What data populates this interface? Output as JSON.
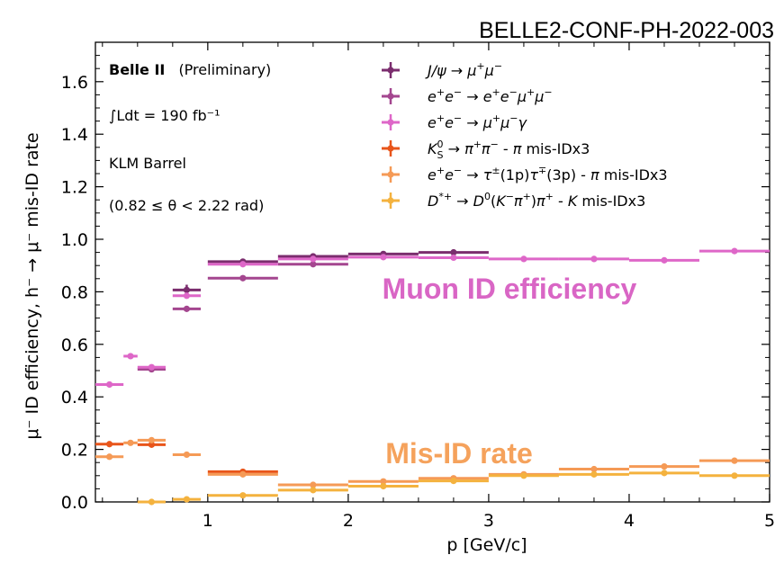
{
  "header": {
    "conf_id": "BELLE2-CONF-PH-2022-003"
  },
  "chart_data": {
    "type": "scatter",
    "xlabel": "p [GeV/c]",
    "ylabel": "μ⁻ ID efficiency, h⁻ → μ⁻ mis-ID rate",
    "xlim": [
      0.2,
      5.0
    ],
    "ylim": [
      0.0,
      1.75
    ],
    "x_ticks": [
      "1",
      "2",
      "3",
      "4",
      "5"
    ],
    "y_ticks": [
      "0.0",
      "0.2",
      "0.4",
      "0.6",
      "0.8",
      "1.0",
      "1.2",
      "1.4",
      "1.6"
    ],
    "info_text": {
      "experiment": "Belle II",
      "status": "(Preliminary)",
      "luminosity": "∫Ldt = 190 fb⁻¹",
      "detector": "KLM Barrel",
      "theta_range": "(0.82  ≤ θ <  2.22 rad)"
    },
    "annotations": {
      "efficiency_label": "Muon ID efficiency",
      "misid_label": "Mis-ID rate"
    },
    "colors": {
      "jpsi": "#7b2d6e",
      "eemumu": "#a4468f",
      "mumugamma": "#de67c8",
      "kshort": "#e8551a",
      "tau": "#f59a56",
      "dstar": "#f4b23e",
      "efficiency_text": "#d966c5",
      "misid_text": "#f5a25c"
    },
    "series": [
      {
        "name": "J/ψ → μ⁺μ⁻",
        "color_key": "jpsi",
        "points": [
          {
            "x": 0.85,
            "xlo": 0.75,
            "xhi": 0.95,
            "y": 0.807,
            "err": 0.02
          },
          {
            "x": 1.25,
            "xlo": 1.0,
            "xhi": 1.5,
            "y": 0.915,
            "err": 0.01
          },
          {
            "x": 1.75,
            "xlo": 1.5,
            "xhi": 2.0,
            "y": 0.935,
            "err": 0.008
          },
          {
            "x": 2.25,
            "xlo": 2.0,
            "xhi": 2.5,
            "y": 0.944,
            "err": 0.008
          },
          {
            "x": 2.75,
            "xlo": 2.5,
            "xhi": 3.0,
            "y": 0.95,
            "err": 0.012
          }
        ]
      },
      {
        "name": "e⁺e⁻ → e⁺e⁻μ⁺μ⁻",
        "color_key": "eemumu",
        "points": [
          {
            "x": 0.6,
            "xlo": 0.5,
            "xhi": 0.7,
            "y": 0.505,
            "err": 0.008
          },
          {
            "x": 0.85,
            "xlo": 0.75,
            "xhi": 0.95,
            "y": 0.735,
            "err": 0.008
          },
          {
            "x": 1.25,
            "xlo": 1.0,
            "xhi": 1.5,
            "y": 0.852,
            "err": 0.006
          },
          {
            "x": 1.75,
            "xlo": 1.5,
            "xhi": 2.0,
            "y": 0.905,
            "err": 0.006
          }
        ]
      },
      {
        "name": "e⁺e⁻ → μ⁺μ⁻γ",
        "color_key": "mumugamma",
        "points": [
          {
            "x": 0.3,
            "xlo": 0.2,
            "xhi": 0.4,
            "y": 0.447,
            "err": 0.006
          },
          {
            "x": 0.45,
            "xlo": 0.4,
            "xhi": 0.5,
            "y": 0.555,
            "err": 0.008
          },
          {
            "x": 0.6,
            "xlo": 0.5,
            "xhi": 0.7,
            "y": 0.513,
            "err": 0.008
          },
          {
            "x": 0.85,
            "xlo": 0.75,
            "xhi": 0.95,
            "y": 0.785,
            "err": 0.01
          },
          {
            "x": 1.25,
            "xlo": 1.0,
            "xhi": 1.5,
            "y": 0.905,
            "err": 0.005
          },
          {
            "x": 1.75,
            "xlo": 1.5,
            "xhi": 2.0,
            "y": 0.925,
            "err": 0.004
          },
          {
            "x": 2.25,
            "xlo": 2.0,
            "xhi": 2.5,
            "y": 0.932,
            "err": 0.004
          },
          {
            "x": 2.75,
            "xlo": 2.5,
            "xhi": 3.0,
            "y": 0.93,
            "err": 0.004
          },
          {
            "x": 3.25,
            "xlo": 3.0,
            "xhi": 3.5,
            "y": 0.925,
            "err": 0.004
          },
          {
            "x": 3.75,
            "xlo": 3.5,
            "xhi": 4.0,
            "y": 0.925,
            "err": 0.004
          },
          {
            "x": 4.25,
            "xlo": 4.0,
            "xhi": 4.5,
            "y": 0.92,
            "err": 0.004
          },
          {
            "x": 4.75,
            "xlo": 4.5,
            "xhi": 5.0,
            "y": 0.955,
            "err": 0.004
          }
        ]
      },
      {
        "name": "K⁰_S → π⁺π⁻ - π mis-IDx3",
        "color_key": "kshort",
        "points": [
          {
            "x": 0.3,
            "xlo": 0.2,
            "xhi": 0.4,
            "y": 0.22,
            "err": 0.006
          },
          {
            "x": 0.6,
            "xlo": 0.5,
            "xhi": 0.7,
            "y": 0.218,
            "err": 0.006
          },
          {
            "x": 1.25,
            "xlo": 1.0,
            "xhi": 1.5,
            "y": 0.115,
            "err": 0.006
          }
        ]
      },
      {
        "name": "e⁺e⁻ → τ±(1p)τ∓(3p) - π mis-IDx3",
        "color_key": "tau",
        "points": [
          {
            "x": 0.3,
            "xlo": 0.2,
            "xhi": 0.4,
            "y": 0.172,
            "err": 0.005
          },
          {
            "x": 0.45,
            "xlo": 0.4,
            "xhi": 0.5,
            "y": 0.225,
            "err": 0.005
          },
          {
            "x": 0.6,
            "xlo": 0.5,
            "xhi": 0.7,
            "y": 0.235,
            "err": 0.005
          },
          {
            "x": 0.85,
            "xlo": 0.75,
            "xhi": 0.95,
            "y": 0.18,
            "err": 0.005
          },
          {
            "x": 1.25,
            "xlo": 1.0,
            "xhi": 1.5,
            "y": 0.105,
            "err": 0.004
          },
          {
            "x": 1.75,
            "xlo": 1.5,
            "xhi": 2.0,
            "y": 0.065,
            "err": 0.004
          },
          {
            "x": 2.25,
            "xlo": 2.0,
            "xhi": 2.5,
            "y": 0.078,
            "err": 0.004
          },
          {
            "x": 2.75,
            "xlo": 2.5,
            "xhi": 3.0,
            "y": 0.09,
            "err": 0.004
          },
          {
            "x": 3.25,
            "xlo": 3.0,
            "xhi": 3.5,
            "y": 0.105,
            "err": 0.004
          },
          {
            "x": 3.75,
            "xlo": 3.5,
            "xhi": 4.0,
            "y": 0.125,
            "err": 0.004
          },
          {
            "x": 4.25,
            "xlo": 4.0,
            "xhi": 4.5,
            "y": 0.135,
            "err": 0.004
          },
          {
            "x": 4.75,
            "xlo": 4.5,
            "xhi": 5.0,
            "y": 0.157,
            "err": 0.006
          }
        ]
      },
      {
        "name": "D*⁺ → D⁰(K⁻π⁺)π⁺ - K mis-IDx3",
        "color_key": "dstar",
        "points": [
          {
            "x": 0.6,
            "xlo": 0.5,
            "xhi": 0.7,
            "y": 0.0,
            "err": 0.005
          },
          {
            "x": 0.85,
            "xlo": 0.75,
            "xhi": 0.95,
            "y": 0.01,
            "err": 0.004
          },
          {
            "x": 1.25,
            "xlo": 1.0,
            "xhi": 1.5,
            "y": 0.025,
            "err": 0.004
          },
          {
            "x": 1.75,
            "xlo": 1.5,
            "xhi": 2.0,
            "y": 0.045,
            "err": 0.004
          },
          {
            "x": 2.25,
            "xlo": 2.0,
            "xhi": 2.5,
            "y": 0.06,
            "err": 0.004
          },
          {
            "x": 2.75,
            "xlo": 2.5,
            "xhi": 3.0,
            "y": 0.08,
            "err": 0.004
          },
          {
            "x": 3.25,
            "xlo": 3.0,
            "xhi": 3.5,
            "y": 0.1,
            "err": 0.004
          },
          {
            "x": 3.75,
            "xlo": 3.5,
            "xhi": 4.0,
            "y": 0.105,
            "err": 0.004
          },
          {
            "x": 4.25,
            "xlo": 4.0,
            "xhi": 4.5,
            "y": 0.11,
            "err": 0.004
          },
          {
            "x": 4.75,
            "xlo": 4.5,
            "xhi": 5.0,
            "y": 0.1,
            "err": 0.004
          }
        ]
      }
    ],
    "legend": {
      "placement": "top-right",
      "entries": [
        {
          "color_key": "jpsi",
          "parts": [
            [
              "J/ψ → μ",
              "it"
            ],
            [
              "+",
              "sup"
            ],
            [
              "μ",
              "it"
            ],
            [
              "−",
              "sup"
            ]
          ]
        },
        {
          "color_key": "eemumu",
          "parts": [
            [
              "e",
              "it"
            ],
            [
              "+",
              "sup"
            ],
            [
              "e",
              "it"
            ],
            [
              "−",
              "sup"
            ],
            [
              " → ",
              "n"
            ],
            [
              "e",
              "it"
            ],
            [
              "+",
              "sup"
            ],
            [
              "e",
              "it"
            ],
            [
              "−",
              "sup"
            ],
            [
              "μ",
              "it"
            ],
            [
              "+",
              "sup"
            ],
            [
              "μ",
              "it"
            ],
            [
              "−",
              "sup"
            ]
          ]
        },
        {
          "color_key": "mumugamma",
          "parts": [
            [
              "e",
              "it"
            ],
            [
              "+",
              "sup"
            ],
            [
              "e",
              "it"
            ],
            [
              "−",
              "sup"
            ],
            [
              " → ",
              "n"
            ],
            [
              "μ",
              "it"
            ],
            [
              "+",
              "sup"
            ],
            [
              "μ",
              "it"
            ],
            [
              "−",
              "sup"
            ],
            [
              "γ",
              "it"
            ]
          ]
        },
        {
          "color_key": "kshort",
          "parts": [
            [
              "K",
              "it"
            ],
            [
              "0",
              "sup"
            ],
            [
              "S",
              "sub"
            ],
            [
              " → ",
              "n"
            ],
            [
              "π",
              "it"
            ],
            [
              "+",
              "sup"
            ],
            [
              "π",
              "it"
            ],
            [
              "−",
              "sup"
            ],
            [
              " - ",
              "n"
            ],
            [
              "π",
              "it"
            ],
            [
              " mis-IDx3",
              "n"
            ]
          ]
        },
        {
          "color_key": "tau",
          "parts": [
            [
              "e",
              "it"
            ],
            [
              "+",
              "sup"
            ],
            [
              "e",
              "it"
            ],
            [
              "−",
              "sup"
            ],
            [
              " → ",
              "n"
            ],
            [
              "τ",
              "it"
            ],
            [
              "±",
              "sup"
            ],
            [
              "(1p)",
              "n"
            ],
            [
              "τ",
              "it"
            ],
            [
              "∓",
              "sup"
            ],
            [
              "(3p) - ",
              "n"
            ],
            [
              "π",
              "it"
            ],
            [
              " mis-IDx3",
              "n"
            ]
          ]
        },
        {
          "color_key": "dstar",
          "parts": [
            [
              "D",
              "it"
            ],
            [
              "*+",
              "sup"
            ],
            [
              " → ",
              "n"
            ],
            [
              "D",
              "it"
            ],
            [
              "0",
              "sup"
            ],
            [
              "(",
              "n"
            ],
            [
              "K",
              "it"
            ],
            [
              "−",
              "sup"
            ],
            [
              "π",
              "it"
            ],
            [
              "+",
              "sup"
            ],
            [
              ")",
              "n"
            ],
            [
              "π",
              "it"
            ],
            [
              "+",
              "sup"
            ],
            [
              " - ",
              "n"
            ],
            [
              "K",
              "it"
            ],
            [
              " mis-IDx3",
              "n"
            ]
          ]
        }
      ]
    }
  }
}
